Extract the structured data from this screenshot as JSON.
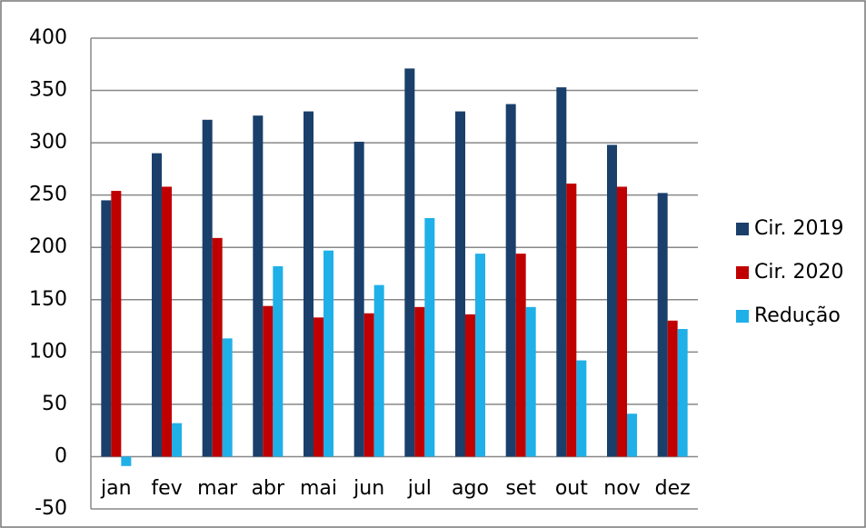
{
  "chart_data": {
    "type": "bar",
    "categories": [
      "jan",
      "fev",
      "mar",
      "abr",
      "mai",
      "jun",
      "jul",
      "ago",
      "set",
      "out",
      "nov",
      "dez"
    ],
    "series": [
      {
        "name": "Cir. 2019",
        "color": "#1a3f6b",
        "values": [
          245,
          290,
          322,
          326,
          330,
          301,
          371,
          330,
          337,
          353,
          298,
          252
        ]
      },
      {
        "name": "Cir. 2020",
        "color": "#c00000",
        "values": [
          254,
          258,
          209,
          144,
          133,
          137,
          143,
          136,
          194,
          261,
          258,
          130
        ]
      },
      {
        "name": "Redução",
        "color": "#1fb0e8",
        "values": [
          -9,
          32,
          113,
          182,
          197,
          164,
          228,
          194,
          143,
          92,
          41,
          122
        ]
      }
    ],
    "ylim": [
      -50,
      400
    ],
    "yticks": [
      -50,
      0,
      50,
      100,
      150,
      200,
      250,
      300,
      350,
      400
    ],
    "grid": true,
    "legend": "right"
  }
}
